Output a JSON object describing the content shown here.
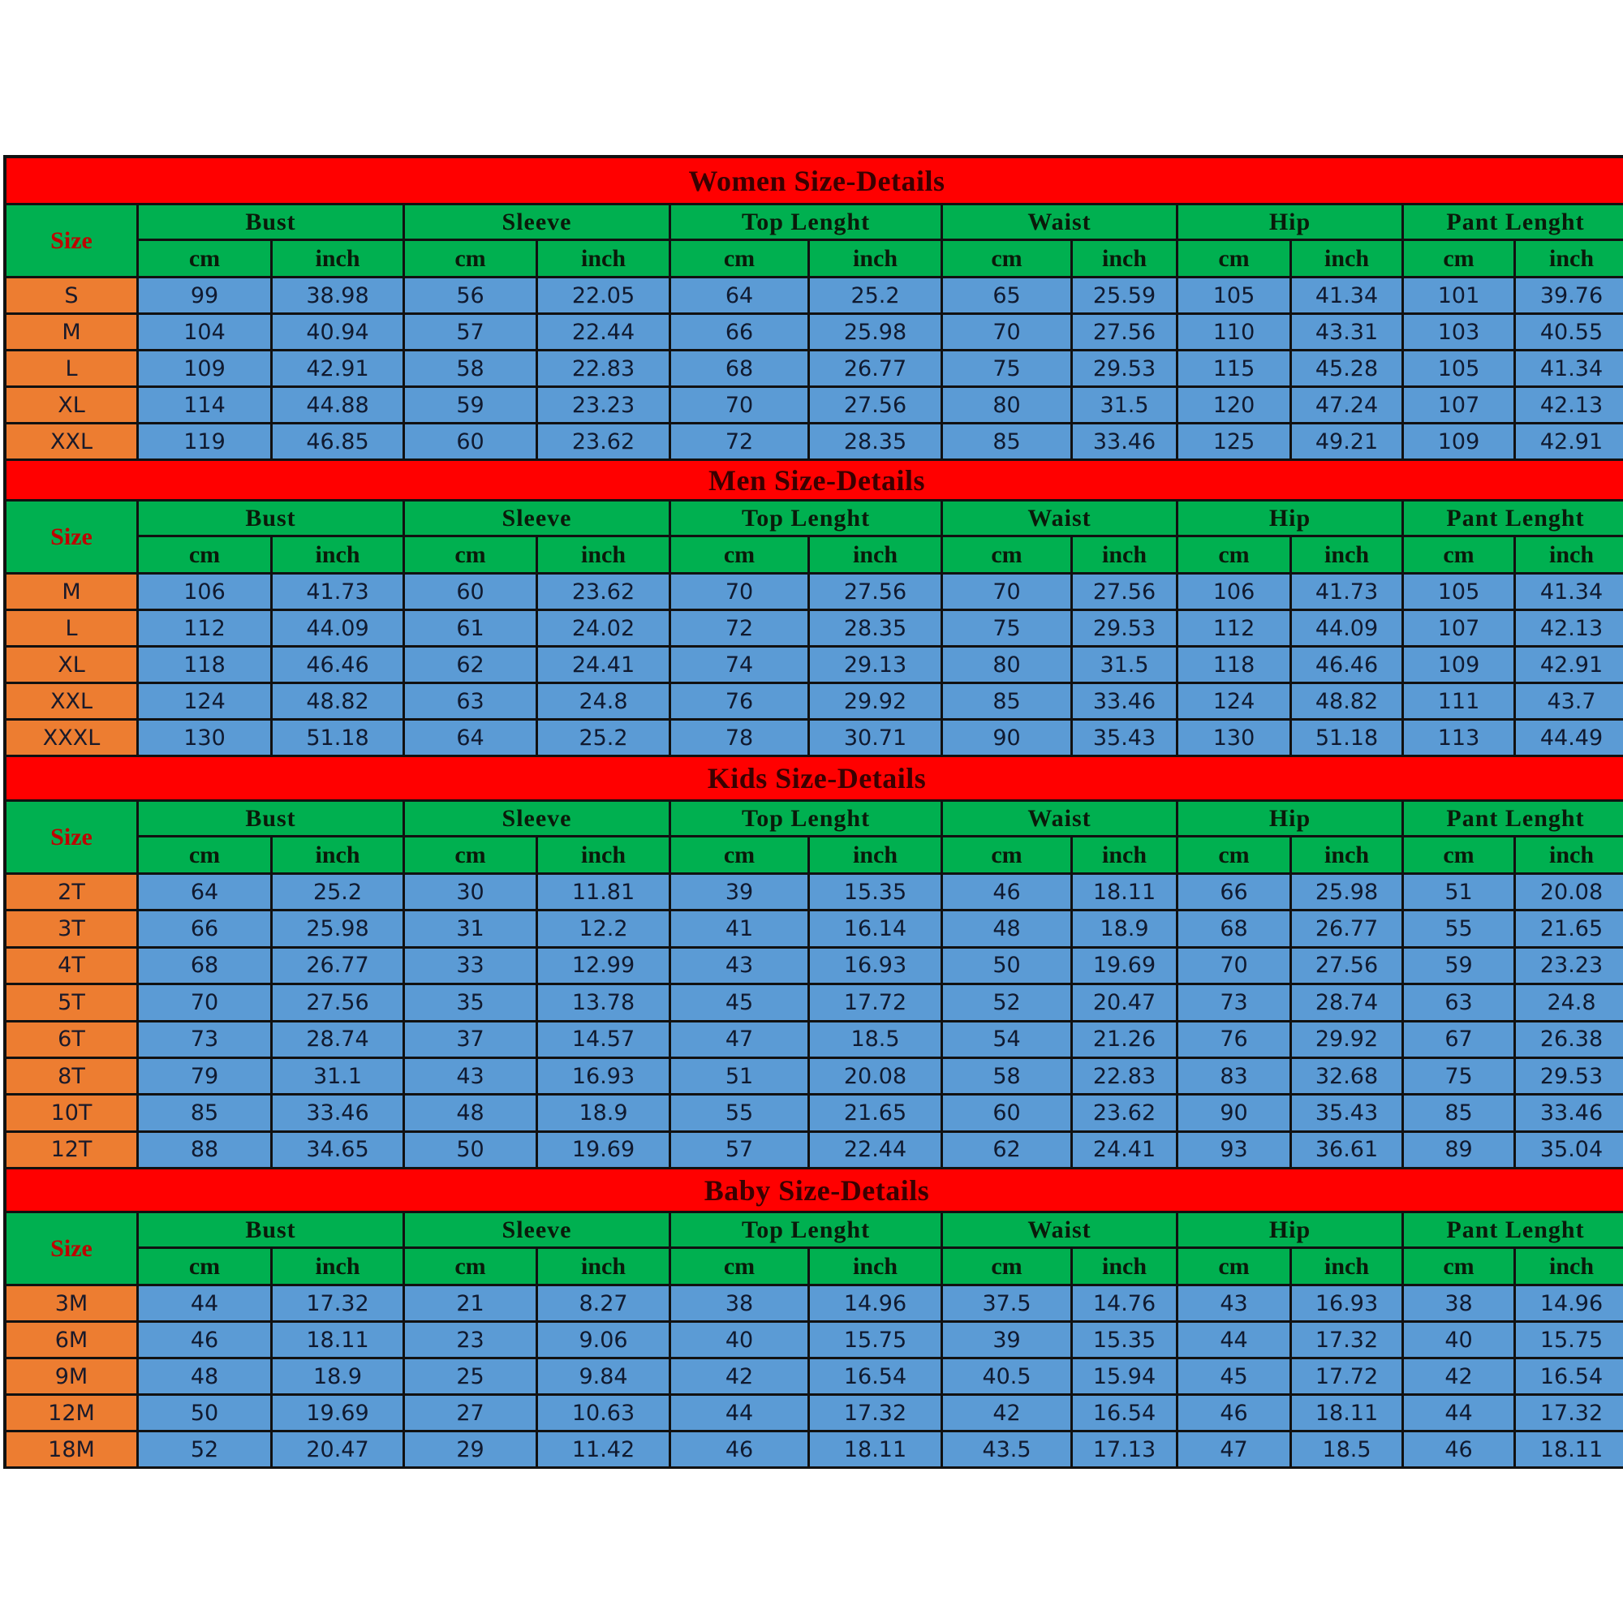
{
  "colors": {
    "title_bg": "#ff0000",
    "header_bg": "#00b050",
    "size_bg": "#ed7d31",
    "value_bg": "#5b9bd5",
    "size_label": "#c00000"
  },
  "size_label": "Size",
  "groups": [
    "Bust",
    "Sleeve",
    "Top Lenght",
    "Waist",
    "Hip",
    "Pant Lenght"
  ],
  "units": [
    "cm",
    "inch"
  ],
  "sections": [
    {
      "title": "Women Size-Details",
      "rows": [
        {
          "size": "S",
          "values": [
            "99",
            "38.98",
            "56",
            "22.05",
            "64",
            "25.2",
            "65",
            "25.59",
            "105",
            "41.34",
            "101",
            "39.76"
          ]
        },
        {
          "size": "M",
          "values": [
            "104",
            "40.94",
            "57",
            "22.44",
            "66",
            "25.98",
            "70",
            "27.56",
            "110",
            "43.31",
            "103",
            "40.55"
          ]
        },
        {
          "size": "L",
          "values": [
            "109",
            "42.91",
            "58",
            "22.83",
            "68",
            "26.77",
            "75",
            "29.53",
            "115",
            "45.28",
            "105",
            "41.34"
          ]
        },
        {
          "size": "XL",
          "values": [
            "114",
            "44.88",
            "59",
            "23.23",
            "70",
            "27.56",
            "80",
            "31.5",
            "120",
            "47.24",
            "107",
            "42.13"
          ]
        },
        {
          "size": "XXL",
          "values": [
            "119",
            "46.85",
            "60",
            "23.62",
            "72",
            "28.35",
            "85",
            "33.46",
            "125",
            "49.21",
            "109",
            "42.91"
          ]
        }
      ]
    },
    {
      "title": "Men Size-Details",
      "rows": [
        {
          "size": "M",
          "values": [
            "106",
            "41.73",
            "60",
            "23.62",
            "70",
            "27.56",
            "70",
            "27.56",
            "106",
            "41.73",
            "105",
            "41.34"
          ]
        },
        {
          "size": "L",
          "values": [
            "112",
            "44.09",
            "61",
            "24.02",
            "72",
            "28.35",
            "75",
            "29.53",
            "112",
            "44.09",
            "107",
            "42.13"
          ]
        },
        {
          "size": "XL",
          "values": [
            "118",
            "46.46",
            "62",
            "24.41",
            "74",
            "29.13",
            "80",
            "31.5",
            "118",
            "46.46",
            "109",
            "42.91"
          ]
        },
        {
          "size": "XXL",
          "values": [
            "124",
            "48.82",
            "63",
            "24.8",
            "76",
            "29.92",
            "85",
            "33.46",
            "124",
            "48.82",
            "111",
            "43.7"
          ]
        },
        {
          "size": "XXXL",
          "values": [
            "130",
            "51.18",
            "64",
            "25.2",
            "78",
            "30.71",
            "90",
            "35.43",
            "130",
            "51.18",
            "113",
            "44.49"
          ]
        }
      ]
    },
    {
      "title": "Kids Size-Details",
      "rows": [
        {
          "size": "2T",
          "values": [
            "64",
            "25.2",
            "30",
            "11.81",
            "39",
            "15.35",
            "46",
            "18.11",
            "66",
            "25.98",
            "51",
            "20.08"
          ]
        },
        {
          "size": "3T",
          "values": [
            "66",
            "25.98",
            "31",
            "12.2",
            "41",
            "16.14",
            "48",
            "18.9",
            "68",
            "26.77",
            "55",
            "21.65"
          ]
        },
        {
          "size": "4T",
          "values": [
            "68",
            "26.77",
            "33",
            "12.99",
            "43",
            "16.93",
            "50",
            "19.69",
            "70",
            "27.56",
            "59",
            "23.23"
          ]
        },
        {
          "size": "5T",
          "values": [
            "70",
            "27.56",
            "35",
            "13.78",
            "45",
            "17.72",
            "52",
            "20.47",
            "73",
            "28.74",
            "63",
            "24.8"
          ]
        },
        {
          "size": "6T",
          "values": [
            "73",
            "28.74",
            "37",
            "14.57",
            "47",
            "18.5",
            "54",
            "21.26",
            "76",
            "29.92",
            "67",
            "26.38"
          ]
        },
        {
          "size": "8T",
          "values": [
            "79",
            "31.1",
            "43",
            "16.93",
            "51",
            "20.08",
            "58",
            "22.83",
            "83",
            "32.68",
            "75",
            "29.53"
          ]
        },
        {
          "size": "10T",
          "values": [
            "85",
            "33.46",
            "48",
            "18.9",
            "55",
            "21.65",
            "60",
            "23.62",
            "90",
            "35.43",
            "85",
            "33.46"
          ]
        },
        {
          "size": "12T",
          "values": [
            "88",
            "34.65",
            "50",
            "19.69",
            "57",
            "22.44",
            "62",
            "24.41",
            "93",
            "36.61",
            "89",
            "35.04"
          ]
        }
      ]
    },
    {
      "title": "Baby Size-Details",
      "rows": [
        {
          "size": "3M",
          "values": [
            "44",
            "17.32",
            "21",
            "8.27",
            "38",
            "14.96",
            "37.5",
            "14.76",
            "43",
            "16.93",
            "38",
            "14.96"
          ]
        },
        {
          "size": "6M",
          "values": [
            "46",
            "18.11",
            "23",
            "9.06",
            "40",
            "15.75",
            "39",
            "15.35",
            "44",
            "17.32",
            "40",
            "15.75"
          ]
        },
        {
          "size": "9M",
          "values": [
            "48",
            "18.9",
            "25",
            "9.84",
            "42",
            "16.54",
            "40.5",
            "15.94",
            "45",
            "17.72",
            "42",
            "16.54"
          ]
        },
        {
          "size": "12M",
          "values": [
            "50",
            "19.69",
            "27",
            "10.63",
            "44",
            "17.32",
            "42",
            "16.54",
            "46",
            "18.11",
            "44",
            "17.32"
          ]
        },
        {
          "size": "18M",
          "values": [
            "52",
            "20.47",
            "29",
            "11.42",
            "46",
            "18.11",
            "43.5",
            "17.13",
            "47",
            "18.5",
            "46",
            "18.11"
          ]
        }
      ]
    }
  ]
}
